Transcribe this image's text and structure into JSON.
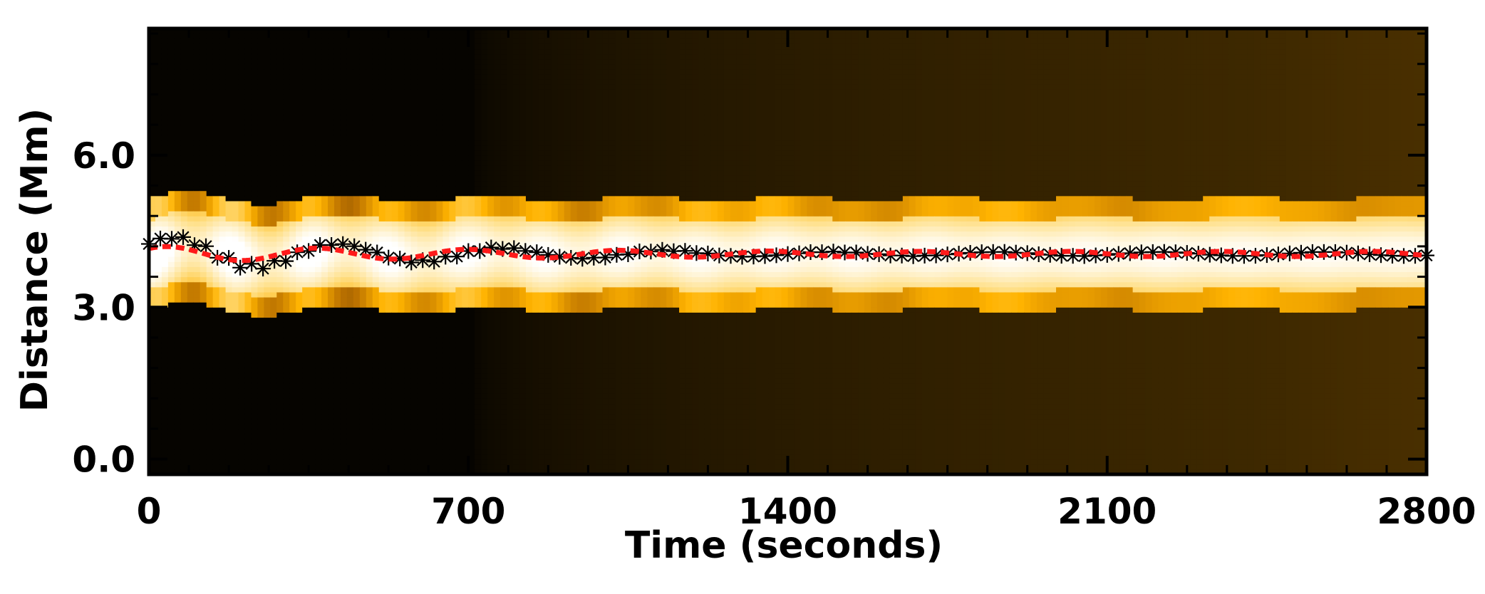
{
  "chart_data": {
    "type": "heatmap",
    "title": "",
    "xlabel": "Time (seconds)",
    "ylabel": "Distance (Mm)",
    "xlim": [
      0,
      2800
    ],
    "ylim": [
      -0.3,
      8.5
    ],
    "x_ticks": [
      "0",
      "700",
      "1400",
      "2100",
      "2800"
    ],
    "y_ticks": [
      "0.0",
      "3.0",
      "6.0"
    ],
    "x_tick_values": [
      0,
      700,
      1400,
      2100,
      2800
    ],
    "y_tick_values": [
      0,
      3,
      6
    ],
    "colormap": [
      "#000000",
      "#3d2800",
      "#b86f00",
      "#ffb300",
      "#ffe08a",
      "#ffffff"
    ],
    "intensity_band": {
      "y_center": 4.05,
      "inner_half_width": 0.7,
      "outer_half_width": 1.1,
      "background_level_start": 0.02,
      "background_level_end": 0.22,
      "background_ramp_time": [
        700,
        2800
      ]
    },
    "series": [
      {
        "type": "scatter",
        "marker": "asterisk",
        "color": "#000000",
        "description_points": "tracked intensity peak positions",
        "x_step": 25,
        "model": {
          "y0": 4.05,
          "amplitude_start": 0.35,
          "decay_time": 700,
          "period": 360,
          "amplitude_floor": 0.04
        }
      },
      {
        "type": "line",
        "style": "dashed",
        "color": "#ff1a1a",
        "model": {
          "y0": 4.05,
          "amplitude_start": 0.15,
          "decay_time": 1400,
          "period": 330,
          "amplitude_floor": 0.05
        }
      }
    ]
  }
}
